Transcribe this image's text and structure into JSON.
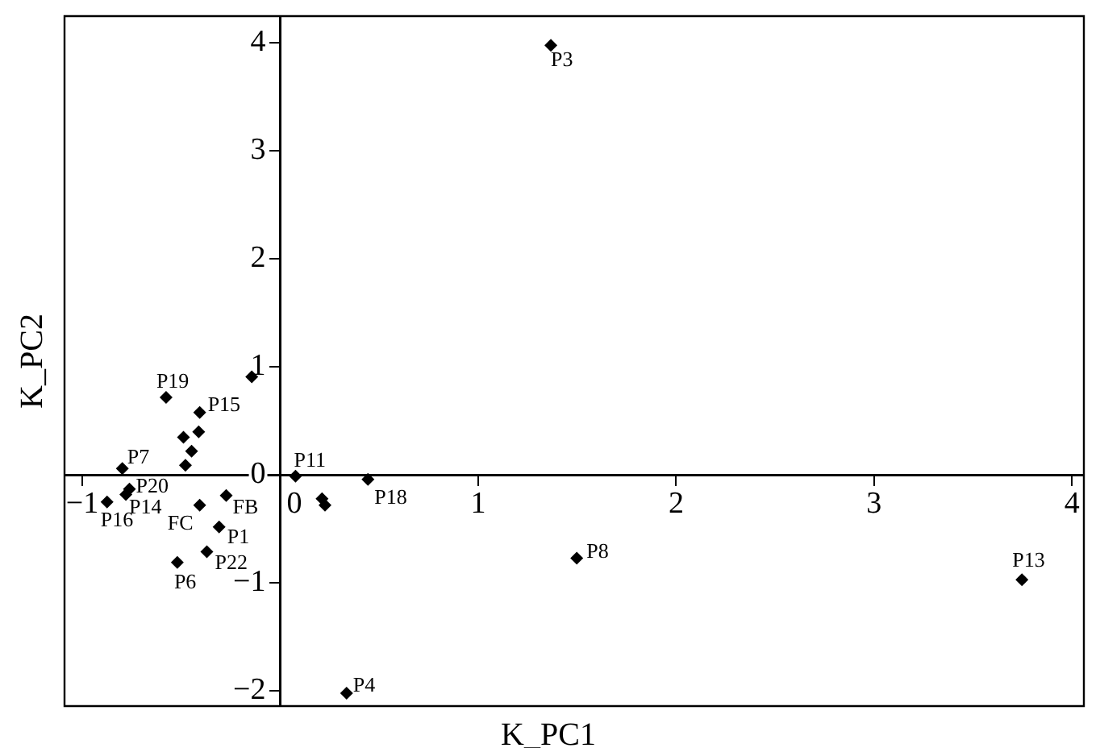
{
  "chart_data": {
    "type": "scatter",
    "xlabel": "K_PC1",
    "ylabel": "K_PC2",
    "x": [
      1.367,
      -0.577,
      -0.144,
      -0.407,
      -0.489,
      -0.412,
      -0.448,
      -0.479,
      -0.798,
      -0.762,
      -0.78,
      -0.875,
      -0.407,
      -0.273,
      -0.309,
      -0.371,
      -0.52,
      0.077,
      0.211,
      0.226,
      0.443,
      0.335,
      1.498,
      3.747
    ],
    "values": [
      3.98,
      0.72,
      0.91,
      0.58,
      0.35,
      0.4,
      0.22,
      0.09,
      0.06,
      -0.13,
      -0.18,
      -0.25,
      -0.28,
      -0.19,
      -0.48,
      -0.71,
      -0.81,
      -0.01,
      -0.22,
      -0.28,
      -0.04,
      -2.02,
      -0.77,
      -0.97
    ],
    "color": "#000000",
    "marker": "diamond",
    "grid": false,
    "legend": false,
    "xlim": [
      -1.09,
      4.06
    ],
    "ylim": [
      -2.14,
      4.25
    ],
    "xticks": [
      -1,
      0,
      1,
      2,
      3,
      4
    ],
    "yticks": [
      -2,
      -1,
      0,
      1,
      2,
      3,
      4
    ],
    "annotations": [
      {
        "text": "P3",
        "x": 1.367,
        "y": 3.98
      },
      {
        "text": "P19",
        "x": -0.577,
        "y": 0.72
      },
      {
        "text": "P15",
        "x": -0.407,
        "y": 0.58
      },
      {
        "text": "P7",
        "x": -0.798,
        "y": 0.06
      },
      {
        "text": "P20",
        "x": -0.762,
        "y": -0.13
      },
      {
        "text": "P14",
        "x": -0.78,
        "y": -0.18
      },
      {
        "text": "P16",
        "x": -0.875,
        "y": -0.25
      },
      {
        "text": "FC",
        "x": -0.407,
        "y": -0.28
      },
      {
        "text": "FB",
        "x": -0.273,
        "y": -0.19
      },
      {
        "text": "P1",
        "x": -0.309,
        "y": -0.48
      },
      {
        "text": "P22",
        "x": -0.371,
        "y": -0.71
      },
      {
        "text": "P6",
        "x": -0.52,
        "y": -0.81
      },
      {
        "text": "P11",
        "x": 0.077,
        "y": -0.01
      },
      {
        "text": "P18",
        "x": 0.443,
        "y": -0.04
      },
      {
        "text": "P4",
        "x": 0.335,
        "y": -2.02
      },
      {
        "text": "P8",
        "x": 1.498,
        "y": -0.77
      },
      {
        "text": "P13",
        "x": 3.747,
        "y": -0.97
      }
    ]
  }
}
